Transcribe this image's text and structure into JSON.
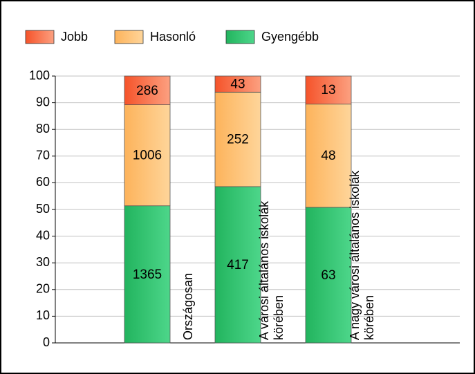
{
  "chart_data": {
    "type": "bar",
    "stacking": "percent",
    "categories": [
      "Országosan",
      "A városi általános iskolák\nkörében",
      "A nagy városi általános iskolák\nkörében"
    ],
    "series": [
      {
        "name": "Jobb",
        "color": "#f5532a",
        "values": [
          286,
          43,
          13
        ]
      },
      {
        "name": "Hasonló",
        "color": "#fdb35b",
        "values": [
          1006,
          252,
          48
        ]
      },
      {
        "name": "Gyengébb",
        "color": "#22b45e",
        "values": [
          1365,
          417,
          63
        ]
      }
    ],
    "ylim": [
      0,
      100
    ],
    "yticks": [
      0,
      10,
      20,
      30,
      40,
      50,
      60,
      70,
      80,
      90,
      100
    ],
    "grid": true,
    "legend": "top"
  }
}
